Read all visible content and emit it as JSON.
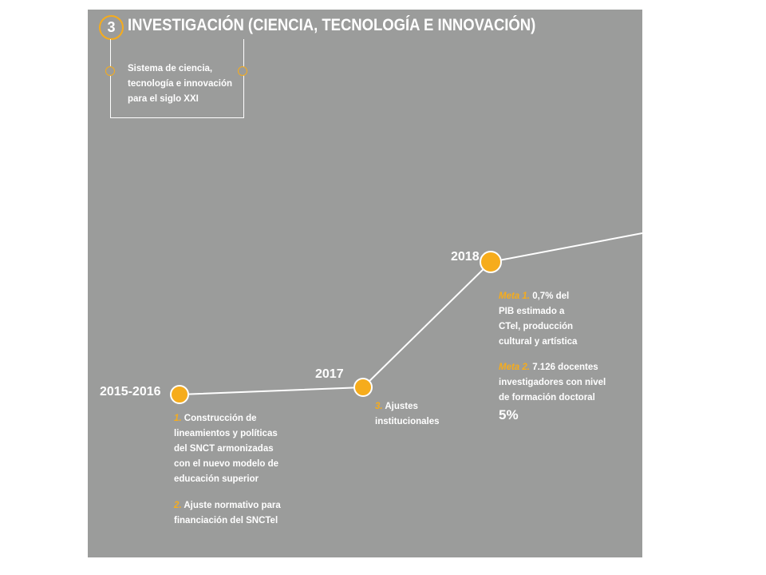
{
  "header": {
    "number": "3",
    "title": "INVESTIGACIÓN (CIENCIA, TECNOLOGÍA E INNOVACIÓN)",
    "subtitle_lines": [
      "Sistema de ciencia,",
      "tecnología e innovación",
      "para el siglo XXI"
    ]
  },
  "colors": {
    "accent": "#f6ac1c",
    "panel": "#9b9c9b",
    "text": "#ffffff"
  },
  "milestones": [
    {
      "year": "2015-2016",
      "items": [
        {
          "prefix": "1.",
          "lines": [
            "Construcción de",
            "lineamientos y políticas",
            "del SNCT armonizadas",
            "con el nuevo modelo de",
            "educación superior"
          ]
        },
        {
          "prefix": "2.",
          "lines": [
            "Ajuste normativo para",
            "financiación del SNCTel"
          ]
        }
      ]
    },
    {
      "year": "2017",
      "items": [
        {
          "prefix": "3.",
          "lines": [
            "Ajustes",
            "institucionales"
          ]
        }
      ]
    },
    {
      "year": "2018",
      "items": [
        {
          "prefix": "Meta 1.",
          "lines": [
            "0,7% del",
            "PIB estimado a",
            "CTel, producción",
            "cultural y artística"
          ]
        },
        {
          "prefix": "Meta 2.",
          "lines": [
            "7.126 docentes",
            "investigadores con nivel",
            "de formación doctoral"
          ]
        }
      ],
      "highlight": "5%"
    }
  ]
}
